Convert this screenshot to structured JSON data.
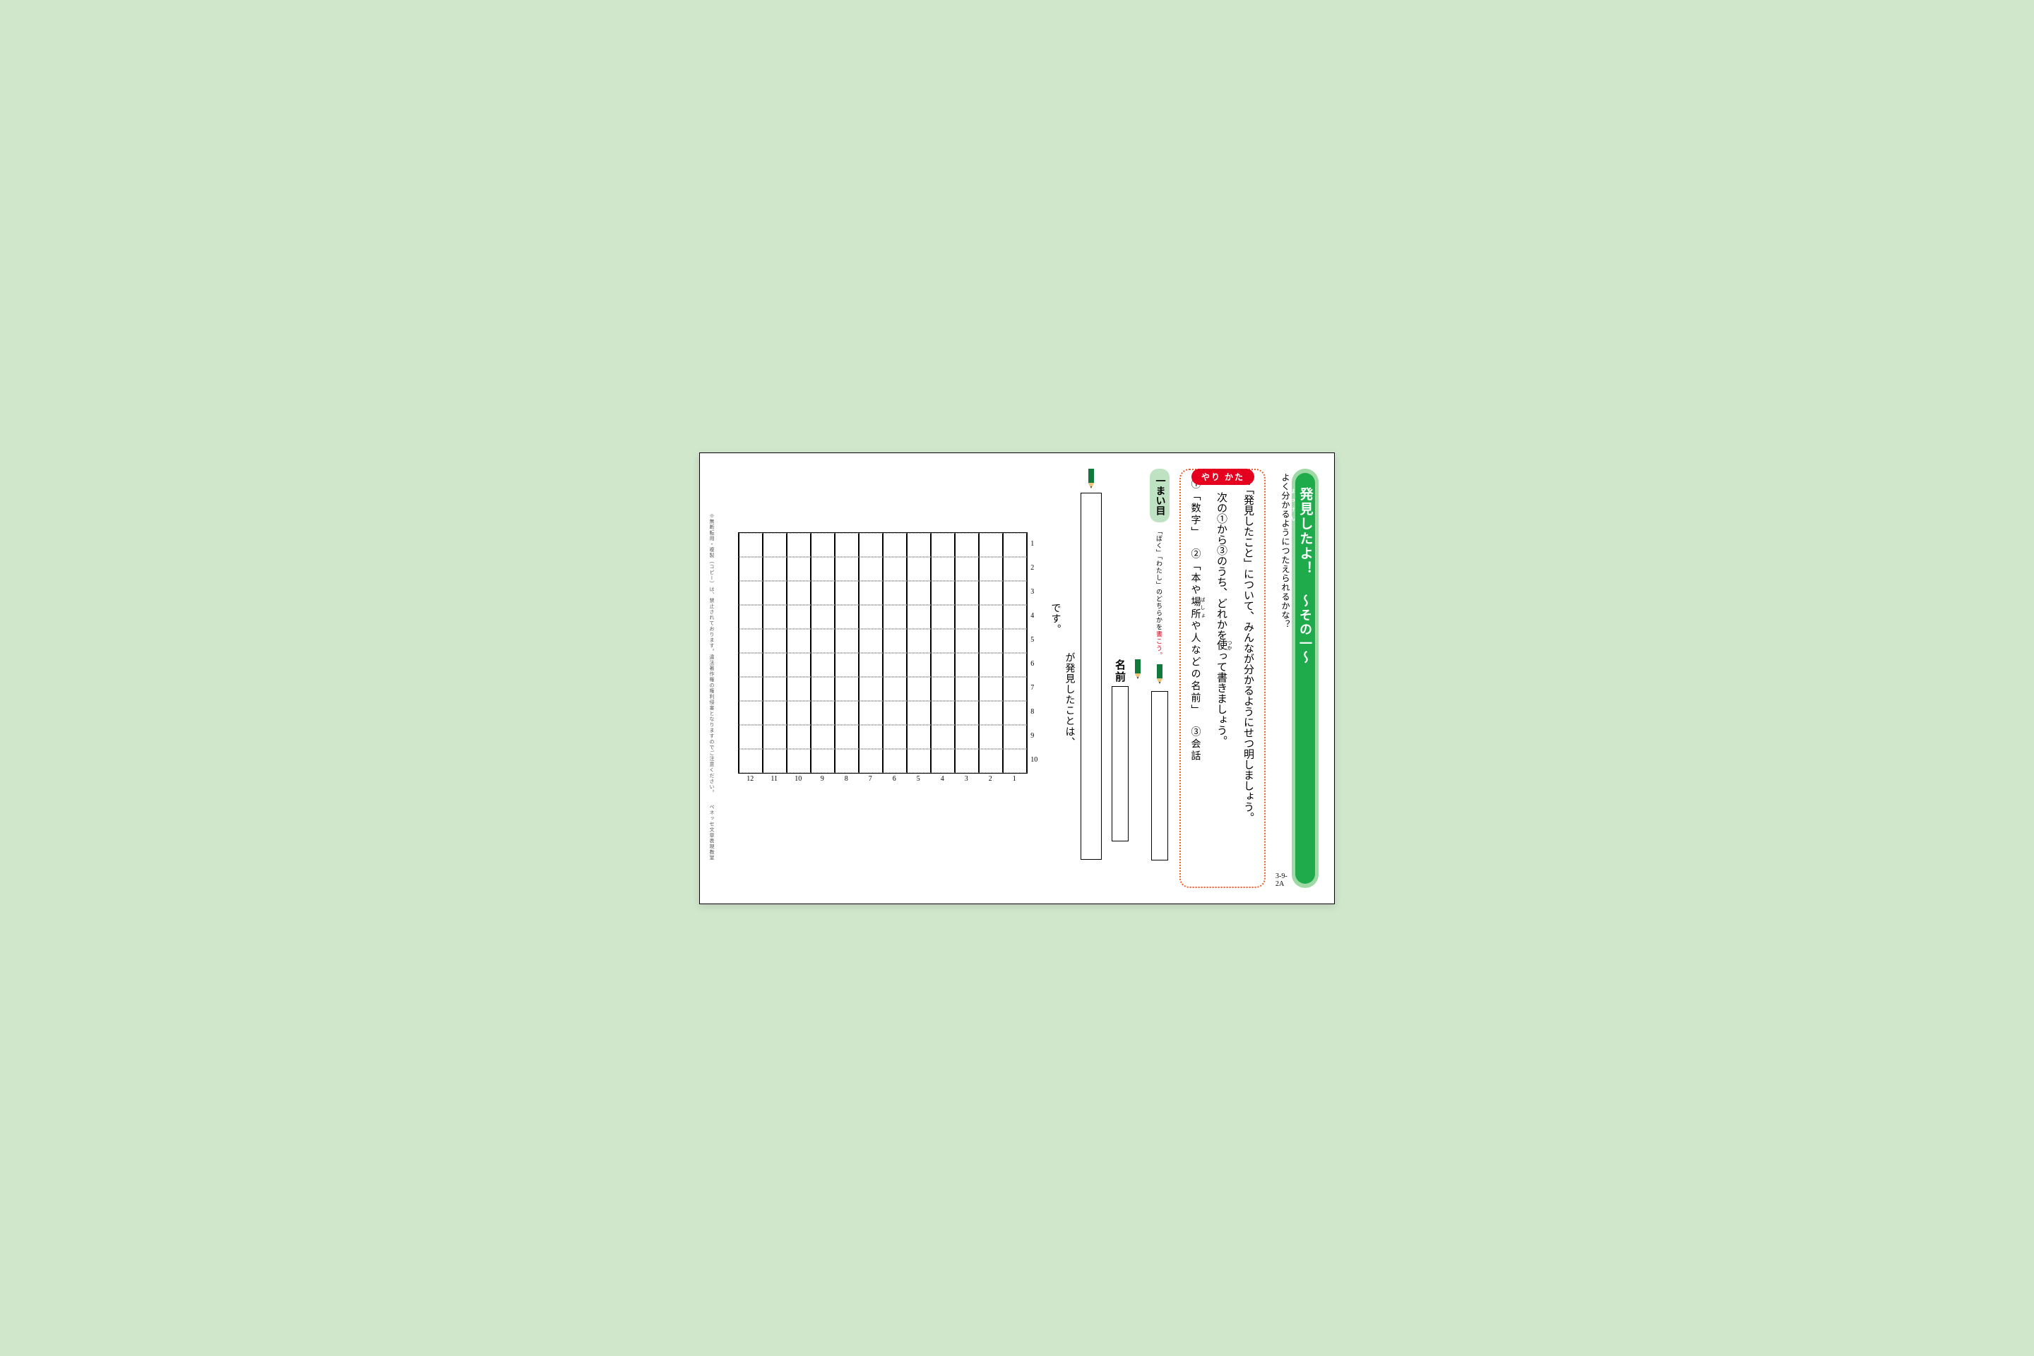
{
  "page_code": "3-9-2A",
  "title": {
    "overline": "よく分かるようにつたえられるかな？",
    "furigana": "はっけん",
    "main": "発見したよ！",
    "subtitle": "〜その一〜"
  },
  "yari_kata": "やり かた",
  "instructions": {
    "line1": "「発見したこと」について、みんなが分かるようにせつ明しましょう。",
    "line2_pre": "次の①から③のうち、どれかを",
    "line2_ruby": "使",
    "line2_rt": "つか",
    "line2_post": "って書きましょう。",
    "opt1": "①「数字」",
    "opt2_pre": "②「本や",
    "opt2_ruby": "場所",
    "opt2_rt": "ばしょ",
    "opt2_post": "や人などの名前」",
    "opt3": "③会話"
  },
  "sheet_label": "一まい目",
  "hint_before": "「ぼく」「わたし」のどちらかを",
  "hint_red": "書こう。",
  "name_label": "名前",
  "answer": {
    "lead": "が発見したことは、",
    "tail": "です。"
  },
  "grid": {
    "cols": 12,
    "rows": 10
  },
  "col_num_labels": [
    "1",
    "2",
    "3",
    "4",
    "5",
    "6",
    "7",
    "8",
    "9",
    "10"
  ],
  "row_num_labels": [
    "1",
    "2",
    "3",
    "4",
    "5",
    "6",
    "7",
    "8",
    "9",
    "10",
    "11",
    "12"
  ],
  "copyright": "※無断転用・複製（コピー）は、禁止されております。違法著作権の権利侵害となりますのでご注意ください。　　ベネッセ文章表現教室",
  "colors": {
    "page_bg": "#d1e7cc",
    "band_outer": "#9fd9a6",
    "band_inner": "#1faa4b",
    "instr_border": "#f15a24",
    "pill_bg": "#e6001f",
    "ichi_bg": "#bfe3c2",
    "hint_accent": "#e6001f",
    "pencil_body": "#117a3a",
    "pencil_tip": "#f2c27a"
  }
}
